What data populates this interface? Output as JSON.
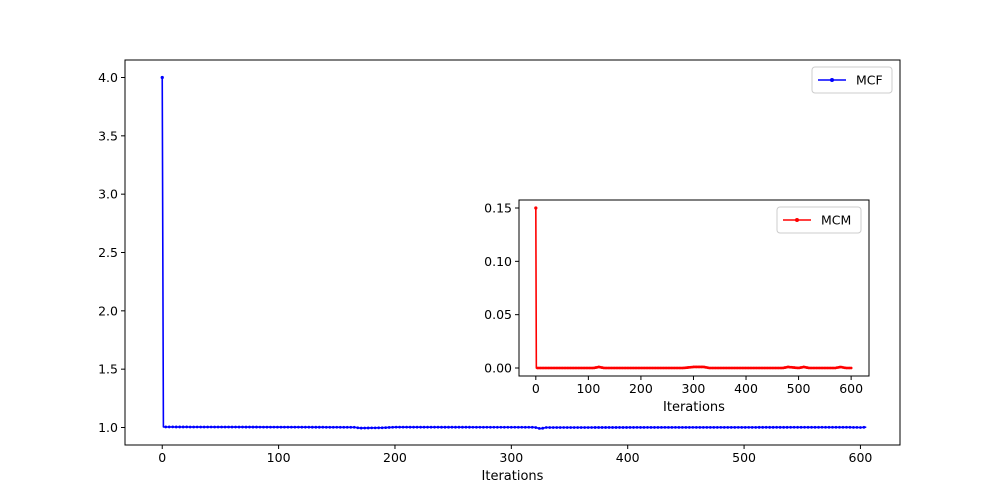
{
  "chart_data": [
    {
      "type": "line",
      "title": "",
      "xlabel": "Iterations",
      "ylabel": "",
      "xlim": [
        -32,
        634
      ],
      "ylim": [
        0.85,
        4.15
      ],
      "xticks": [
        0,
        100,
        200,
        300,
        400,
        500,
        600
      ],
      "yticks": [
        1.0,
        1.5,
        2.0,
        2.5,
        3.0,
        3.5,
        4.0
      ],
      "grid": false,
      "legend": "top-right",
      "series": [
        {
          "name": "MCF",
          "color": "#0000ff",
          "marker": "point",
          "x": [
            0,
            1,
            165,
            170,
            190,
            200,
            320,
            325,
            330,
            590,
            600,
            605
          ],
          "y": [
            4.0,
            1.005,
            1.002,
            0.995,
            0.998,
            1.003,
            1.002,
            0.99,
            1.0,
            1.002,
            1.0,
            1.003
          ]
        }
      ]
    },
    {
      "type": "line",
      "title": "",
      "xlabel": "Iterations",
      "ylabel": "",
      "xlim": [
        -32,
        634
      ],
      "ylim": [
        -0.0075,
        0.1575
      ],
      "xticks": [
        0,
        100,
        200,
        300,
        400,
        500,
        600
      ],
      "yticks": [
        0.0,
        0.05,
        0.1,
        0.15
      ],
      "grid": false,
      "legend": "top-right",
      "inset": true,
      "series": [
        {
          "name": "MCM",
          "color": "#ff0000",
          "marker": "point",
          "x": [
            0,
            1,
            110,
            120,
            130,
            280,
            300,
            320,
            330,
            470,
            480,
            500,
            510,
            520,
            530,
            570,
            580,
            590,
            600
          ],
          "y": [
            0.15,
            0.0,
            0.0,
            0.001,
            0.0,
            0.0,
            0.001,
            0.001,
            0.0,
            0.0,
            0.001,
            0.0,
            0.001,
            0.0,
            0.0,
            0.0,
            0.001,
            0.0,
            0.0
          ]
        }
      ]
    }
  ]
}
